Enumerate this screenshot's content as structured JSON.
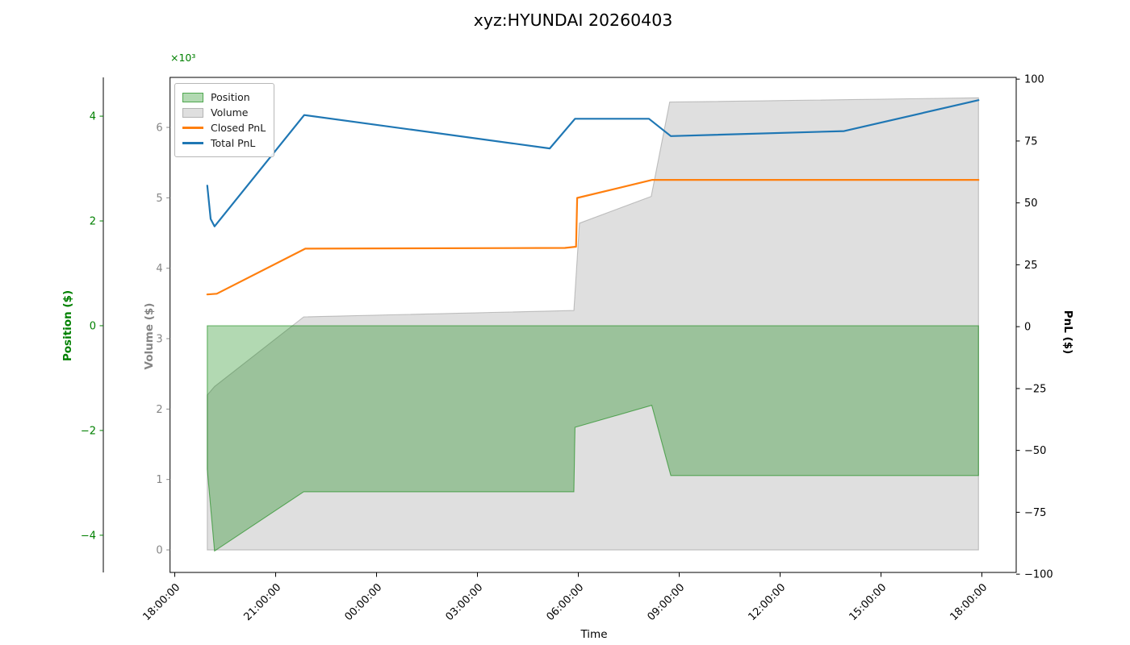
{
  "chart_data": {
    "type": "area",
    "title": "xyz:HYUNDAI 20260403",
    "xlabel": "Time",
    "grid": false,
    "legend_loc": "upper left",
    "x_ticks": [
      "18:00:00",
      "21:00:00",
      "00:00:00",
      "03:00:00",
      "06:00:00",
      "09:00:00",
      "12:00:00",
      "15:00:00",
      "18:00:00"
    ],
    "x_tick_hours": [
      0,
      3,
      6,
      9,
      12,
      15,
      18,
      21,
      24
    ],
    "xlim_hours": [
      -0.14,
      25.02
    ],
    "axes": {
      "position": {
        "label": "Position ($)",
        "color": "#008000",
        "offset_text": "×10³",
        "ticks": [
          4,
          2,
          0,
          -2,
          -4
        ],
        "tick_labels": [
          "4",
          "2",
          "0",
          "−2",
          "−4"
        ],
        "ylim": [
          -4.71,
          4.74
        ]
      },
      "volume": {
        "label": "Volume ($)",
        "color": "#858585",
        "ticks": [
          6,
          5,
          4,
          3,
          2,
          1,
          0
        ],
        "tick_labels": [
          "6",
          "5",
          "4",
          "3",
          "2",
          "1",
          "0"
        ],
        "ylim": [
          -0.32,
          6.71
        ]
      },
      "pnl": {
        "label": "PnL ($)",
        "color": "#000000",
        "ticks": [
          100,
          75,
          50,
          25,
          0,
          -25,
          -50,
          -75,
          -100
        ],
        "tick_labels": [
          "100",
          "75",
          "50",
          "25",
          "0",
          "−25",
          "−50",
          "−75",
          "−100"
        ],
        "ylim": [
          -99.3,
          100.7
        ]
      }
    },
    "series": [
      {
        "name": "Position",
        "axis": "position",
        "type": "area",
        "color": "#008000",
        "points": [
          [
            "18:58",
            -2.74
          ],
          [
            "19:11",
            -4.3
          ],
          [
            "21:50",
            -3.17
          ],
          [
            "05:52",
            -3.17
          ],
          [
            "05:54",
            -1.94
          ],
          [
            "08:11",
            -1.52
          ],
          [
            "08:45",
            -2.86
          ],
          [
            "17:54",
            -2.86
          ]
        ]
      },
      {
        "name": "Volume",
        "axis": "volume",
        "type": "area",
        "color": "#808080",
        "points": [
          [
            "18:58",
            2.2
          ],
          [
            "19:11",
            2.32
          ],
          [
            "21:50",
            3.31
          ],
          [
            "05:52",
            3.4
          ],
          [
            "06:02",
            4.64
          ],
          [
            "08:10",
            5.02
          ],
          [
            "08:43",
            6.36
          ],
          [
            "17:54",
            6.42
          ]
        ]
      },
      {
        "name": "Closed PnL",
        "axis": "pnl",
        "type": "line",
        "color": "#ff7f0e",
        "points": [
          [
            "18:58",
            13.0
          ],
          [
            "19:15",
            13.3
          ],
          [
            "21:53",
            31.5
          ],
          [
            "05:36",
            31.8
          ],
          [
            "05:56",
            32.3
          ],
          [
            "05:58",
            52.0
          ],
          [
            "08:12",
            59.3
          ],
          [
            "17:54",
            59.3
          ]
        ]
      },
      {
        "name": "Total PnL",
        "axis": "pnl",
        "type": "line",
        "color": "#1f77b4",
        "points": [
          [
            "18:58",
            57.0
          ],
          [
            "19:04",
            43.5
          ],
          [
            "19:11",
            40.5
          ],
          [
            "21:51",
            85.5
          ],
          [
            "05:09",
            72.0
          ],
          [
            "05:54",
            84.0
          ],
          [
            "08:06",
            84.0
          ],
          [
            "08:45",
            77.0
          ],
          [
            "13:54",
            79.0
          ],
          [
            "17:54",
            91.5
          ]
        ]
      }
    ]
  }
}
